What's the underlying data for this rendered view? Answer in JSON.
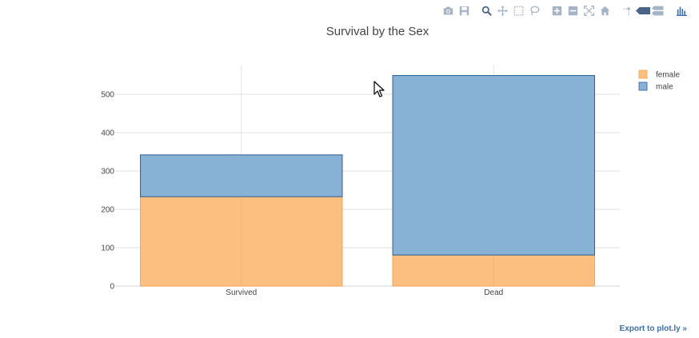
{
  "chart_data": {
    "type": "bar",
    "barmode": "stack",
    "title": "Survival by the Sex",
    "categories": [
      "Survived",
      "Dead"
    ],
    "series": [
      {
        "name": "female",
        "values": [
          233,
          81
        ],
        "color": "#fdbf7f"
      },
      {
        "name": "male",
        "values": [
          109,
          468
        ],
        "color": "#88b1d6"
      }
    ],
    "ylim": [
      0,
      575
    ],
    "yticks": [
      0,
      100,
      200,
      300,
      400,
      500
    ],
    "grid": true,
    "legend_position": "top-right"
  },
  "colors": {
    "female_fill": "#fdbf7f",
    "female_edge": "#f5a24b",
    "male_fill": "#88b1d6",
    "male_edge": "#2b5f94",
    "grid": "#e2e2e2",
    "modebar_icon": "#a4b3c6",
    "modebar_active": "#4a6389",
    "export_link": "#3d6faa"
  },
  "modebar": {
    "icons": [
      "camera-icon",
      "save-icon",
      "zoom-icon",
      "pan-icon",
      "box-select-icon",
      "lasso-icon",
      "zoom-in-icon",
      "zoom-out-icon",
      "autoscale-icon",
      "reset-axes-icon",
      "spike-lines-icon",
      "hover-closest-icon",
      "hover-compare-icon",
      "plotly-logo-icon"
    ]
  },
  "footer": {
    "export_label": "Export to plot.ly »"
  }
}
